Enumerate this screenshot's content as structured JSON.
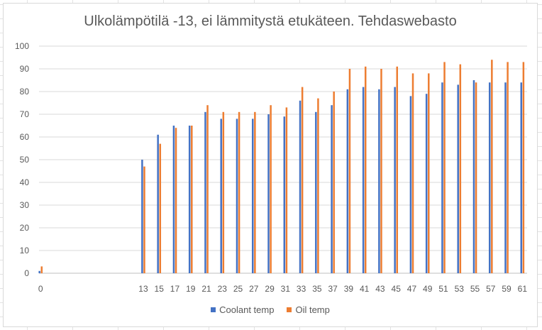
{
  "chart_data": {
    "type": "bar",
    "title": "Ulkolämpötilä -13, ei lämmitystä etukäteen. Tehdaswebasto",
    "xlabel": "",
    "ylabel": "",
    "ylim": [
      0,
      100
    ],
    "yticks": [
      0,
      10,
      20,
      30,
      40,
      50,
      60,
      70,
      80,
      90,
      100
    ],
    "x": [
      0,
      13,
      15,
      17,
      19,
      21,
      23,
      25,
      27,
      29,
      31,
      33,
      35,
      37,
      39,
      41,
      43,
      45,
      47,
      49,
      51,
      53,
      55,
      57,
      59,
      61
    ],
    "xlim": [
      -0.2,
      61.6
    ],
    "series": [
      {
        "name": "Coolant temp",
        "color": "#4472c4",
        "values": [
          1,
          50,
          61,
          65,
          65,
          71,
          68,
          68,
          68,
          70,
          69,
          76,
          71,
          74,
          81,
          82,
          81,
          82,
          78,
          79,
          84,
          83,
          85,
          84,
          84,
          84
        ]
      },
      {
        "name": "Oil temp",
        "color": "#ed7d31",
        "values": [
          3,
          47,
          57,
          64,
          65,
          74,
          71,
          71,
          71,
          74,
          73,
          82,
          77,
          80,
          90,
          91,
          90,
          91,
          88,
          88,
          93,
          92,
          84,
          94,
          93,
          93
        ]
      }
    ],
    "legend": "bottom",
    "grid": true
  }
}
